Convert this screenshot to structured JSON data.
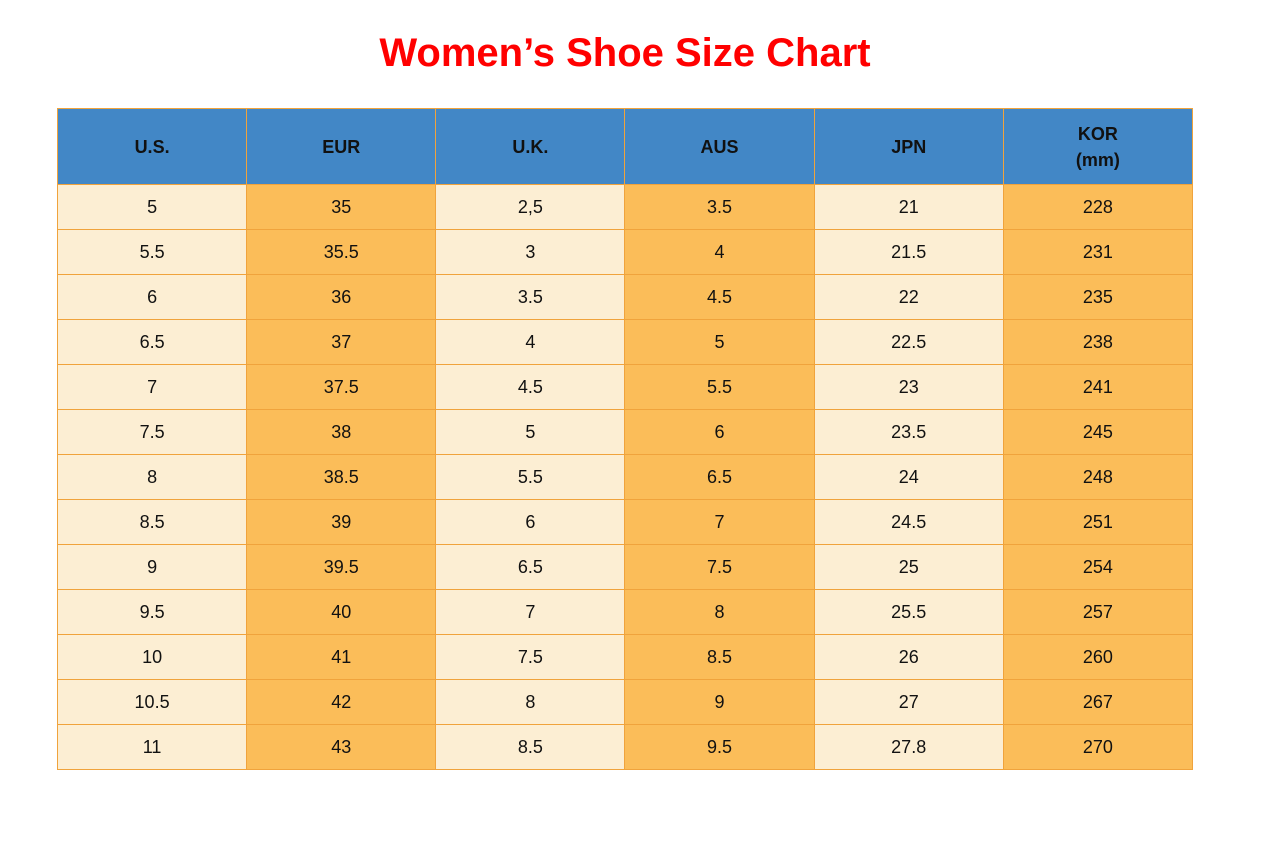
{
  "title": {
    "text": "Women’s Shoe Size Chart"
  },
  "colors": {
    "title": "#ff0000",
    "header_bg": "#4287c6",
    "header_text": "#111111",
    "col_light": "#fceed3",
    "col_orange": "#fbbd59",
    "border": "#f0a33c",
    "cell_text": "#111111"
  },
  "table": {
    "headers": [
      {
        "label": "U.S.",
        "sublabel": ""
      },
      {
        "label": "EUR",
        "sublabel": ""
      },
      {
        "label": "U.K.",
        "sublabel": ""
      },
      {
        "label": "AUS",
        "sublabel": ""
      },
      {
        "label": "JPN",
        "sublabel": ""
      },
      {
        "label": "KOR",
        "sublabel": "(mm)"
      }
    ]
  },
  "chart_data": {
    "type": "table",
    "title": "Women’s Shoe Size Chart",
    "columns": [
      "U.S.",
      "EUR",
      "U.K.",
      "AUS",
      "JPN",
      "KOR (mm)"
    ],
    "rows": [
      [
        "5",
        "35",
        "2,5",
        "3.5",
        "21",
        "228"
      ],
      [
        "5.5",
        "35.5",
        "3",
        "4",
        "21.5",
        "231"
      ],
      [
        "6",
        "36",
        "3.5",
        "4.5",
        "22",
        "235"
      ],
      [
        "6.5",
        "37",
        "4",
        "5",
        "22.5",
        "238"
      ],
      [
        "7",
        "37.5",
        "4.5",
        "5.5",
        "23",
        "241"
      ],
      [
        "7.5",
        "38",
        "5",
        "6",
        "23.5",
        "245"
      ],
      [
        "8",
        "38.5",
        "5.5",
        "6.5",
        "24",
        "248"
      ],
      [
        "8.5",
        "39",
        "6",
        "7",
        "24.5",
        "251"
      ],
      [
        "9",
        "39.5",
        "6.5",
        "7.5",
        "25",
        "254"
      ],
      [
        "9.5",
        "40",
        "7",
        "8",
        "25.5",
        "257"
      ],
      [
        "10",
        "41",
        "7.5",
        "8.5",
        "26",
        "260"
      ],
      [
        "10.5",
        "42",
        "8",
        "9",
        "27",
        "267"
      ],
      [
        "11",
        "43",
        "8.5",
        "9.5",
        "27.8",
        "270"
      ]
    ],
    "layout_hints": {
      "column_fill_pattern": [
        "light",
        "orange",
        "light",
        "orange",
        "light",
        "orange"
      ],
      "header_fill": "blue",
      "grid": "on"
    }
  }
}
